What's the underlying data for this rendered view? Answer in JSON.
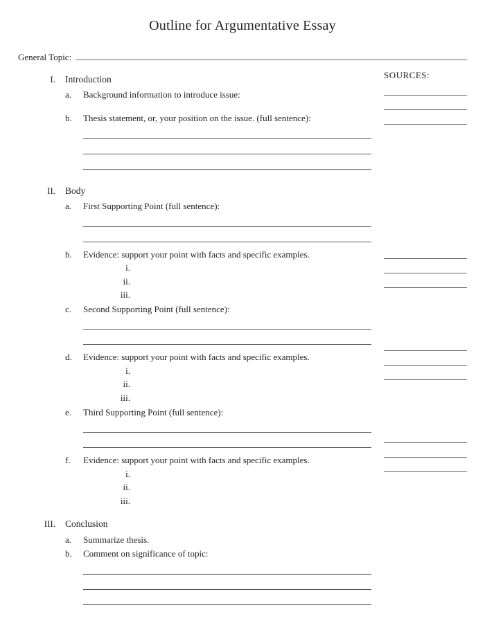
{
  "title": "Outline for Argumentative Essay",
  "general_topic_label": "General Topic:",
  "sources_label": "SOURCES:",
  "line_color": "#555555",
  "background_color": "#ffffff",
  "text_color": "#222222",
  "font_family": "Georgia, Times New Roman, serif",
  "sections": {
    "I": {
      "numeral": "I.",
      "heading": "Introduction",
      "items": {
        "a": {
          "letter": "a.",
          "text": "Background information to introduce issue:",
          "write_lines": 0,
          "source_lines": 3,
          "after_gap": true
        },
        "b": {
          "letter": "b.",
          "text": "Thesis statement, or, your position on the issue. (full sentence):",
          "write_lines": 3,
          "source_lines": 0
        }
      }
    },
    "II": {
      "numeral": "II.",
      "heading": "Body",
      "items": {
        "a": {
          "letter": "a.",
          "text": "First Supporting Point (full sentence):",
          "write_lines": 2,
          "source_lines": 0
        },
        "b": {
          "letter": "b.",
          "text": "Evidence: support your point with facts and specific examples.",
          "sub": [
            {
              "n": "i."
            },
            {
              "n": "ii."
            },
            {
              "n": "iii."
            }
          ],
          "source_lines": 3
        },
        "c": {
          "letter": "c.",
          "text": "Second Supporting Point (full sentence):",
          "write_lines": 2,
          "source_lines": 0
        },
        "d": {
          "letter": "d.",
          "text": "Evidence: support your point with facts and specific examples.",
          "sub": [
            {
              "n": "i."
            },
            {
              "n": "ii."
            },
            {
              "n": "iii."
            }
          ],
          "source_lines": 3
        },
        "e": {
          "letter": "e.",
          "text": "Third Supporting Point (full sentence):",
          "write_lines": 2,
          "source_lines": 0
        },
        "f": {
          "letter": "f.",
          "text": "Evidence: support your point with facts and specific examples.",
          "sub": [
            {
              "n": "i."
            },
            {
              "n": "ii."
            },
            {
              "n": "iii."
            }
          ],
          "source_lines": 3
        }
      }
    },
    "III": {
      "numeral": "III.",
      "heading": "Conclusion",
      "items": {
        "a": {
          "letter": "a.",
          "text": "Summarize thesis.",
          "write_lines": 0,
          "source_lines": 0
        },
        "b": {
          "letter": "b.",
          "text": "Comment on significance of topic:",
          "write_lines": 3,
          "source_lines": 0
        }
      }
    }
  }
}
